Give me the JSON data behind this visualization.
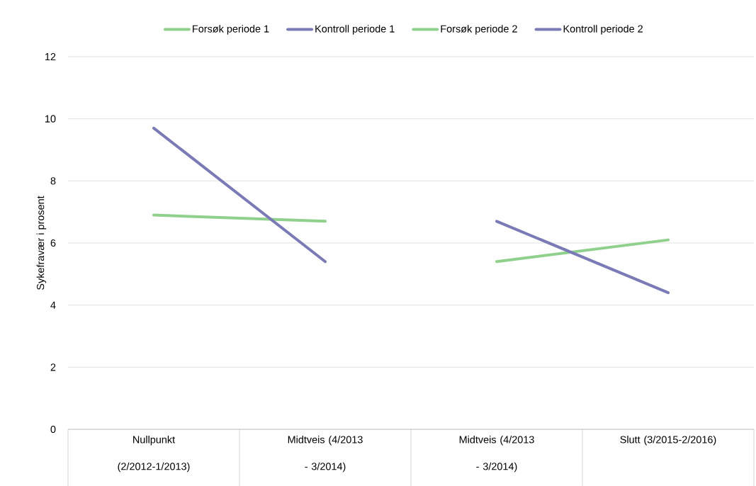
{
  "chart_data": {
    "type": "line",
    "categories": [
      "Nullpunkt (2/2012-1/2013)",
      "Midtveis (4/2013 - 3/2014)",
      "Midtveis (4/2013 - 3/2014)",
      "Slutt (3/2015-2/2016)"
    ],
    "ylabel": "Sykefravær i prosent",
    "series": [
      {
        "name": "Forsøk periode 1",
        "color": "#8fd08c",
        "values": [
          6.9,
          6.7,
          null,
          null
        ]
      },
      {
        "name": "Kontroll periode 1",
        "color": "#7a7bb6",
        "values": [
          9.7,
          5.4,
          null,
          null
        ]
      },
      {
        "name": "Forsøk periode 2",
        "color": "#8fd08c",
        "values": [
          null,
          null,
          5.4,
          6.1
        ]
      },
      {
        "name": "Kontroll periode 2",
        "color": "#7a7bb6",
        "values": [
          null,
          null,
          6.7,
          4.4
        ]
      }
    ],
    "ylim": [
      0,
      12
    ],
    "yticks": [
      0,
      2,
      4,
      6,
      8,
      10,
      12
    ],
    "grid": "y",
    "legend": "top",
    "marker": "none",
    "line_style": "solid"
  }
}
